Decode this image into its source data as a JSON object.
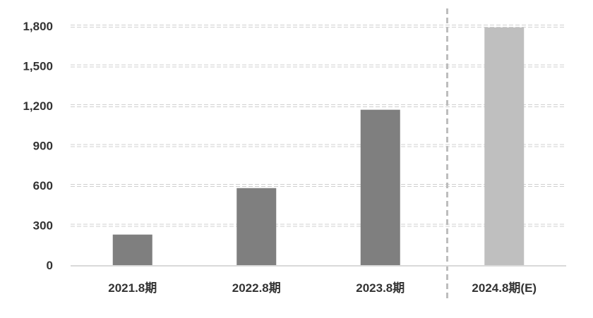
{
  "chart_data": {
    "type": "bar",
    "title": "",
    "xlabel": "",
    "ylabel": "",
    "categories": [
      "2021.8期",
      "2022.8期",
      "2023.8期",
      "2024.8期(E)"
    ],
    "values": [
      230,
      580,
      1170,
      1790
    ],
    "ylim": [
      0,
      1800
    ],
    "yticks": [
      0,
      300,
      600,
      900,
      1200,
      1500,
      1800
    ],
    "ytick_labels": [
      "0",
      "300",
      "600",
      "900",
      "1,200",
      "1,500",
      "1,800"
    ],
    "grid": true,
    "forecast_separator": "between 2023.8期 and 2024.8期(E)",
    "colors": {
      "actual": "#7f7f7f",
      "forecast": "#bfbfbf",
      "grid": "#d0d0d0",
      "axis": "#d9d9d9",
      "separator": "#bdbdbd"
    },
    "forecast_flags": [
      false,
      false,
      false,
      true
    ]
  }
}
